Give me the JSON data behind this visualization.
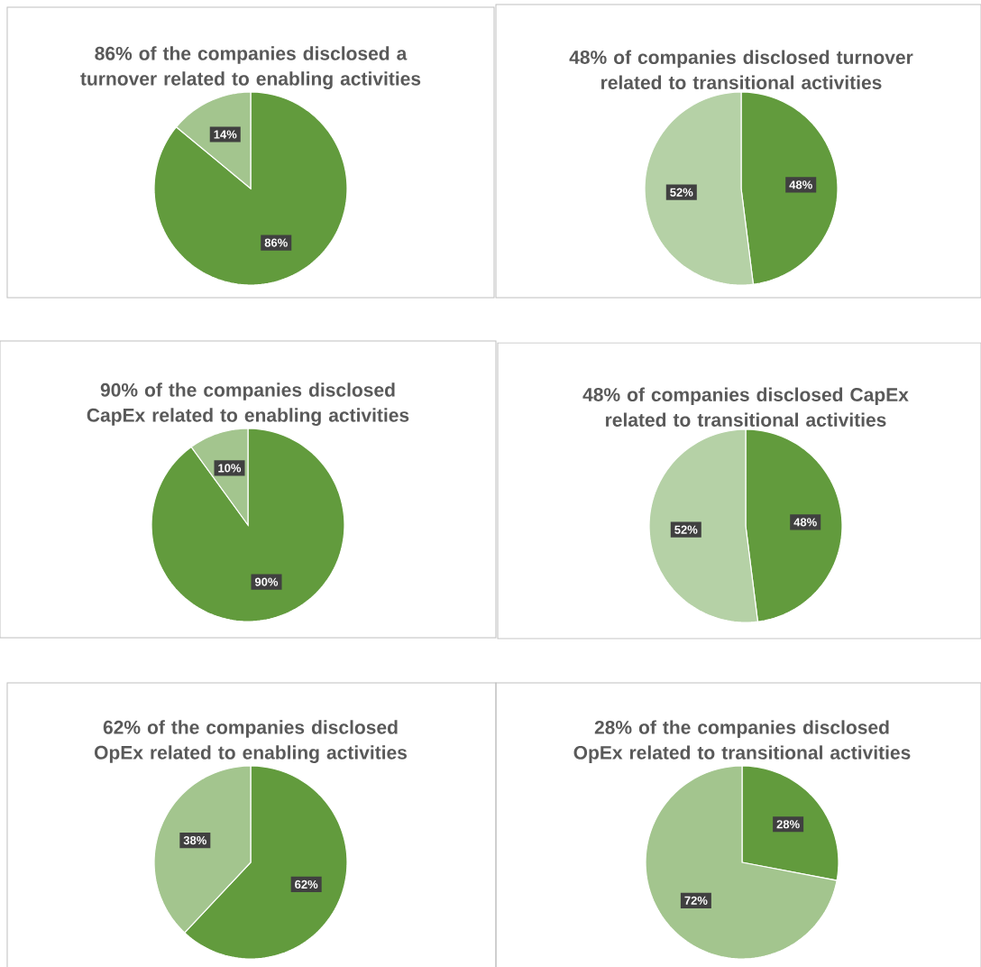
{
  "chart_data": [
    {
      "type": "pie",
      "title": "86% of the companies disclosed a turnover related to enabling activities",
      "categories": [
        null,
        null
      ],
      "values": [
        86,
        14
      ],
      "colors": [
        "#629b3d",
        "#a3c58e"
      ],
      "value_labels": [
        "86%",
        "14%"
      ]
    },
    {
      "type": "pie",
      "title": "48% of  companies disclosed turnover related to transitional activities",
      "categories": [
        null,
        null
      ],
      "values": [
        48,
        52
      ],
      "colors": [
        "#629b3d",
        "#b5d1a6"
      ],
      "value_labels": [
        "48%",
        "52%"
      ]
    },
    {
      "type": "pie",
      "title": "90% of the companies disclosed CapEx related to enabling activities",
      "categories": [
        null,
        null
      ],
      "values": [
        90,
        10
      ],
      "colors": [
        "#629b3d",
        "#a3c58e"
      ],
      "value_labels": [
        "90%",
        "10%"
      ]
    },
    {
      "type": "pie",
      "title": "48% of  companies disclosed CapEx related to transitional activities",
      "categories": [
        null,
        null
      ],
      "values": [
        48,
        52
      ],
      "colors": [
        "#629b3d",
        "#b5d1a6"
      ],
      "value_labels": [
        "48%",
        "52%"
      ]
    },
    {
      "type": "pie",
      "title": "62% of the companies disclosed OpEx related to enabling activities",
      "categories": [
        null,
        null
      ],
      "values": [
        62,
        38
      ],
      "colors": [
        "#629b3d",
        "#a3c58e"
      ],
      "value_labels": [
        "62%",
        "38%"
      ]
    },
    {
      "type": "pie",
      "title": "28% of the companies disclosed OpEx related to transitional activities",
      "categories": [
        null,
        null
      ],
      "values": [
        28,
        72
      ],
      "colors": [
        "#629b3d",
        "#a3c58e"
      ],
      "value_labels": [
        "28%",
        "72%"
      ]
    }
  ]
}
